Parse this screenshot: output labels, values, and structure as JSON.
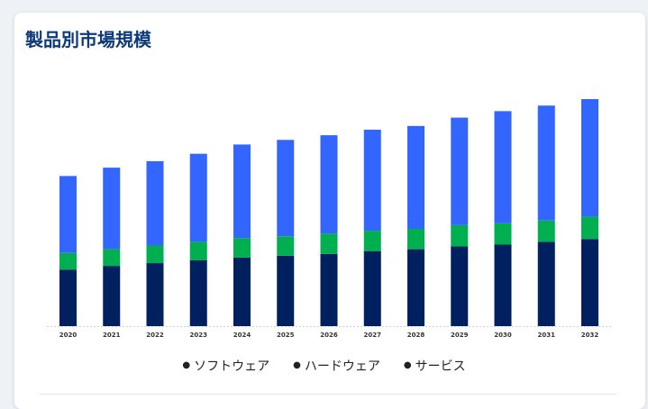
{
  "title": "製品別市場規模",
  "colors": {
    "software": "#3366ff",
    "hardware": "#00b050",
    "service": "#002060"
  },
  "chart_data": {
    "type": "bar",
    "stacked": true,
    "title": "製品別市場規模",
    "xlabel": "",
    "ylabel": "",
    "ylim": [
      0,
      245
    ],
    "grid": false,
    "legend_position": "bottom",
    "categories": [
      "2020",
      "2021",
      "2022",
      "2023",
      "2024",
      "2025",
      "2026",
      "2027",
      "2028",
      "2029",
      "2030",
      "2031",
      "2032"
    ],
    "series": [
      {
        "name": "サービス",
        "color": "#002060",
        "values": [
          61,
          65,
          68,
          71,
          74,
          76,
          78,
          81,
          83,
          86,
          88,
          91,
          94
        ]
      },
      {
        "name": "ハードウェア",
        "color": "#00b050",
        "values": [
          18,
          18,
          19,
          20,
          21,
          21,
          22,
          22,
          22,
          23,
          23,
          23,
          24
        ]
      },
      {
        "name": "ソフトウェア",
        "color": "#3366ff",
        "values": [
          83,
          88,
          91,
          95,
          101,
          104,
          106,
          109,
          111,
          116,
          121,
          124,
          127
        ]
      }
    ]
  },
  "legend": [
    {
      "label": "ソフトウェア"
    },
    {
      "label": "ハードウェア"
    },
    {
      "label": "サービス"
    }
  ]
}
